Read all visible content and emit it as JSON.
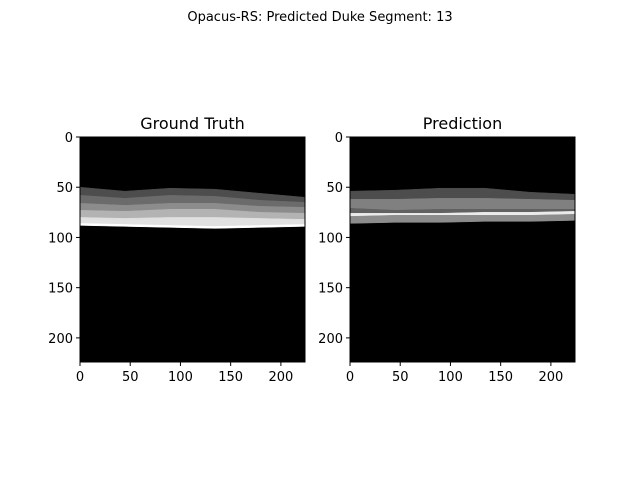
{
  "suptitle": "Opacus-RS: Predicted Duke Segment: 13",
  "chart_data": [
    {
      "type": "heatmap",
      "title": "Ground Truth",
      "colormap": "gray",
      "xlim": [
        0,
        224
      ],
      "ylim": [
        224,
        0
      ],
      "xticks": [
        "0",
        "50",
        "100",
        "150",
        "200"
      ],
      "yticks": [
        "0",
        "50",
        "100",
        "150",
        "200"
      ],
      "bands": [
        {
          "value": 0.3,
          "top": [
            50,
            54,
            51,
            52,
            56,
            60
          ],
          "bottom": [
            58,
            61,
            58,
            59,
            63,
            65
          ]
        },
        {
          "value": 0.42,
          "top": [
            58,
            61,
            58,
            59,
            63,
            65
          ],
          "bottom": [
            66,
            68,
            66,
            66,
            69,
            70
          ]
        },
        {
          "value": 0.55,
          "top": [
            66,
            68,
            66,
            66,
            69,
            70
          ],
          "bottom": [
            73,
            74,
            72,
            72,
            75,
            76
          ]
        },
        {
          "value": 0.7,
          "top": [
            73,
            74,
            72,
            72,
            75,
            76
          ],
          "bottom": [
            80,
            81,
            80,
            80,
            81,
            82
          ]
        },
        {
          "value": 0.88,
          "top": [
            80,
            81,
            80,
            80,
            81,
            82
          ],
          "bottom": [
            86,
            87,
            88,
            89,
            88,
            87
          ]
        },
        {
          "value": 1.0,
          "top": [
            86,
            87,
            88,
            89,
            88,
            87
          ],
          "bottom": [
            88,
            89,
            90,
            91,
            90,
            89
          ]
        }
      ]
    },
    {
      "type": "heatmap",
      "title": "Prediction",
      "colormap": "gray",
      "xlim": [
        0,
        224
      ],
      "ylim": [
        224,
        0
      ],
      "xticks": [
        "0",
        "50",
        "100",
        "150",
        "200"
      ],
      "yticks": [
        "0",
        "50",
        "100",
        "150",
        "200"
      ],
      "bands": [
        {
          "value": 0.3,
          "top": [
            54,
            53,
            51,
            51,
            55,
            57
          ],
          "bottom": [
            62,
            62,
            61,
            61,
            62,
            63
          ]
        },
        {
          "value": 0.5,
          "top": [
            62,
            62,
            61,
            61,
            62,
            63
          ],
          "bottom": [
            71,
            73,
            72,
            72,
            72,
            72
          ]
        },
        {
          "value": 0.38,
          "top": [
            71,
            73,
            72,
            72,
            72,
            72
          ],
          "bottom": [
            76,
            76,
            76,
            75,
            75,
            74
          ]
        },
        {
          "value": 0.92,
          "top": [
            76,
            76,
            76,
            75,
            75,
            74
          ],
          "bottom": [
            79,
            78,
            78,
            78,
            78,
            77
          ]
        },
        {
          "value": 0.55,
          "top": [
            79,
            78,
            78,
            78,
            78,
            77
          ],
          "bottom": [
            86,
            85,
            85,
            84,
            84,
            83
          ]
        }
      ]
    }
  ]
}
